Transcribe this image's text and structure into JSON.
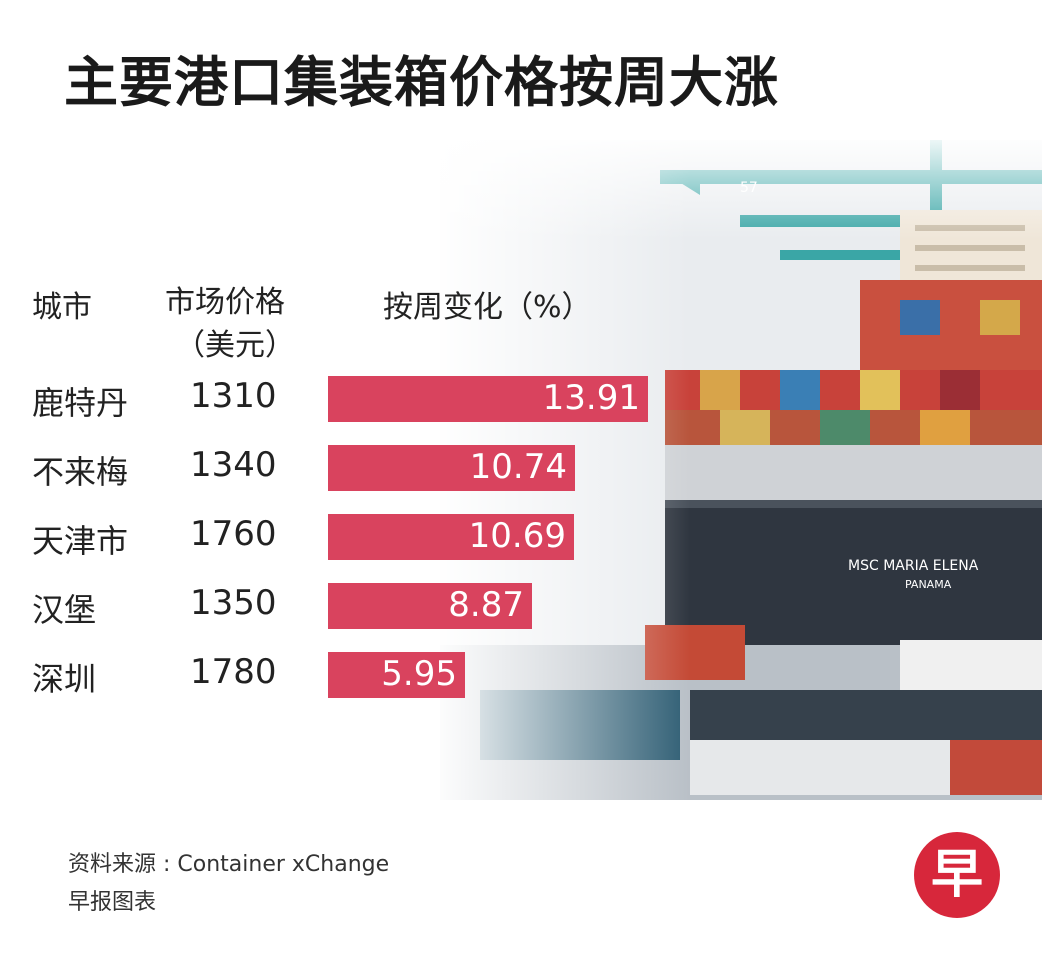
{
  "title": "主要港口集装箱价格按周大涨",
  "headers": {
    "city": "城市",
    "price": "市场价格",
    "price_unit": "（美元）",
    "change": "按周变化（%）"
  },
  "chart_data": {
    "type": "bar",
    "title": "主要港口集装箱价格按周大涨",
    "categories": [
      "鹿特丹",
      "不来梅",
      "天津市",
      "汉堡",
      "深圳"
    ],
    "prices": [
      "1310",
      "1340",
      "1760",
      "1350",
      "1780"
    ],
    "values": [
      13.91,
      10.74,
      10.69,
      8.87,
      5.95
    ],
    "value_labels": [
      "13.91",
      "10.74",
      "10.69",
      "8.87",
      "5.95"
    ],
    "bar_color": "#d9435e",
    "xlim": [
      0,
      13.91
    ]
  },
  "ship_name": "MSC MARIA ELENA",
  "ship_flag": "PANAMA",
  "crane_number": "57",
  "source": "资料来源 : Container xChange",
  "credit": "早报图表",
  "logo_char": "早",
  "colors": {
    "bar": "#d9435e",
    "logo": "#d7273b"
  }
}
